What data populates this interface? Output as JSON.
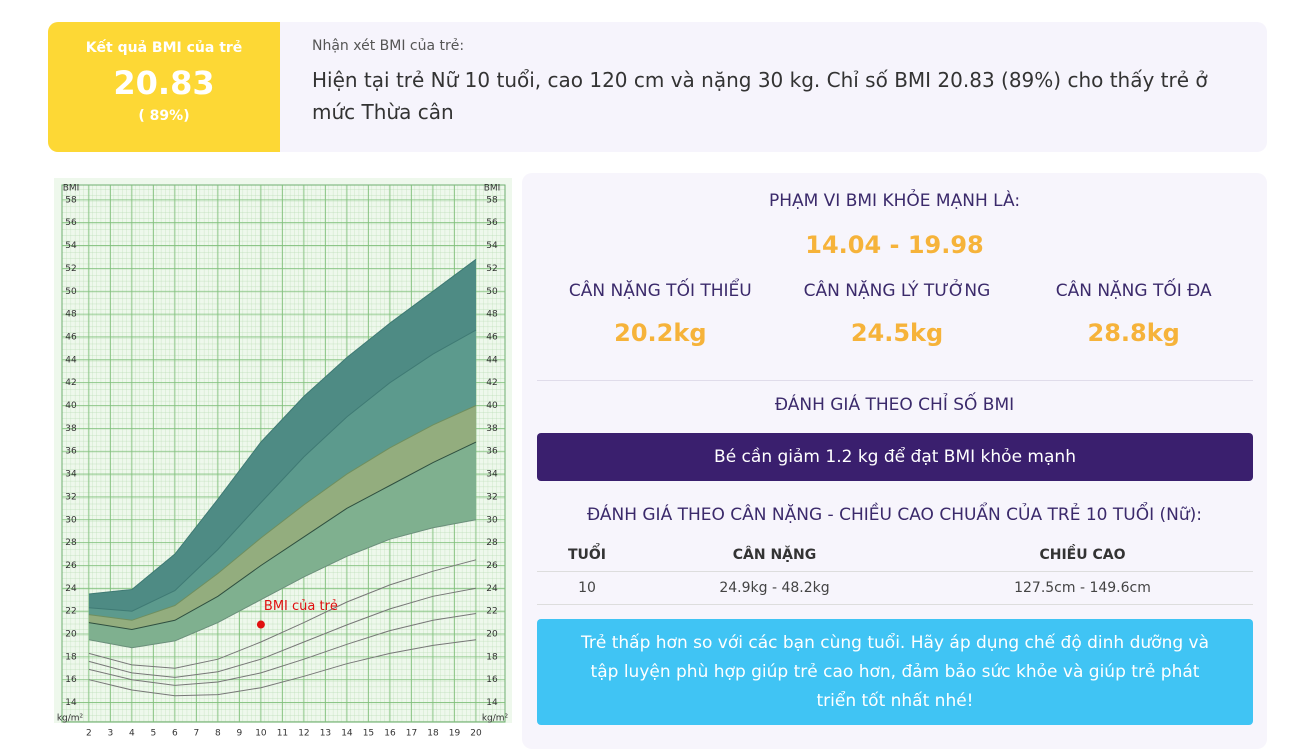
{
  "result": {
    "label": "Kết quả BMI của trẻ",
    "bmi": "20.83",
    "percent": "( 89%)"
  },
  "comment": {
    "label": "Nhận xét BMI của trẻ:",
    "text": "Hiện tại trẻ Nữ 10 tuổi, cao 120 cm và nặng 30 kg. Chỉ số BMI 20.83 (89%) cho thấy trẻ ở mức Thừa cân"
  },
  "healthy": {
    "title": "PHẠM VI BMI KHỎE MẠNH LÀ:",
    "range": "14.04 - 19.98",
    "items": [
      {
        "label": "CÂN NẶNG TỐI THIỂU",
        "value": "20.2kg"
      },
      {
        "label": "CÂN NẶNG LÝ TƯỞNG",
        "value": "24.5kg"
      },
      {
        "label": "CÂN NẶNG TỐI ĐA",
        "value": "28.8kg"
      }
    ]
  },
  "assessment": {
    "title": "ĐÁNH GIÁ THEO CHỈ SỐ BMI",
    "message": "Bé cần giảm 1.2 kg để đạt BMI khỏe mạnh"
  },
  "standard": {
    "title": "ĐÁNH GIÁ THEO CÂN NẶNG - CHIỀU CAO CHUẨN CỦA TRẺ 10 TUỔI (Nữ):",
    "table": {
      "headers": [
        "TUỔI",
        "CÂN NẶNG",
        "CHIỀU CAO"
      ],
      "rows": [
        [
          "10",
          "24.9kg - 48.2kg",
          "127.5cm - 149.6cm"
        ]
      ]
    },
    "advice": "Trẻ thấp hơn so với các bạn cùng tuổi. Hãy áp dụng chế độ dinh dưỡng và tập luyện phù hợp giúp trẻ cao hơn, đảm bảo sức khỏe và giúp trẻ phát triển tốt nhất nhé!"
  },
  "chart_data": {
    "type": "line",
    "y_label": "BMI",
    "unit_label": "kg/m²",
    "x": [
      2,
      4,
      6,
      8,
      10,
      12,
      14,
      16,
      18,
      20
    ],
    "xlim": [
      0.75,
      21.35
    ],
    "xticks": [
      2,
      3,
      4,
      5,
      6,
      7,
      8,
      9,
      10,
      11,
      12,
      13,
      14,
      15,
      16,
      17,
      18,
      19,
      20
    ],
    "ylim": [
      12.3,
      59.3
    ],
    "yticks": [
      14,
      16,
      18,
      20,
      22,
      24,
      26,
      28,
      30,
      32,
      34,
      36,
      38,
      40,
      42,
      44,
      46,
      48,
      50,
      52,
      54,
      56,
      58
    ],
    "grid": true,
    "series": [
      {
        "color": "#3f7a74",
        "fill": "#4e8b84",
        "values": [
          23.5,
          23.9,
          27,
          31.8,
          36.8,
          40.8,
          44.2,
          47.2,
          50,
          52.8
        ]
      },
      {
        "color": "#3f7a74",
        "fill": "#5c9a8d",
        "values": [
          22.3,
          22,
          23.8,
          27.4,
          31.5,
          35.5,
          39,
          42,
          44.5,
          46.6
        ]
      },
      {
        "color": "#6f8f5f",
        "fill": "#93ad7e",
        "values": [
          21.7,
          21.2,
          22.5,
          25.3,
          28.4,
          31.3,
          34,
          36.3,
          38.3,
          40
        ]
      },
      {
        "color": "#2f4f3f",
        "fill": "#7fb08f",
        "values": [
          21,
          20.4,
          21.2,
          23.3,
          26,
          28.5,
          31,
          33,
          35,
          36.8
        ]
      },
      {
        "color": "#6b8f7b",
        "values": [
          19.5,
          18.8,
          19.4,
          21,
          23,
          25,
          26.8,
          28.3,
          29.3,
          30
        ]
      },
      {
        "color": "#777777",
        "values": [
          18.3,
          17.3,
          17,
          17.8,
          19.3,
          21,
          22.8,
          24.3,
          25.5,
          26.5
        ]
      },
      {
        "color": "#777777",
        "values": [
          17.6,
          16.6,
          16.2,
          16.7,
          17.8,
          19.3,
          20.8,
          22.2,
          23.3,
          24
        ]
      },
      {
        "color": "#777777",
        "values": [
          16.9,
          16,
          15.5,
          15.8,
          16.6,
          17.8,
          19.1,
          20.3,
          21.2,
          21.8
        ]
      },
      {
        "color": "#777777",
        "values": [
          16,
          15.1,
          14.6,
          14.7,
          15.3,
          16.3,
          17.4,
          18.3,
          19,
          19.5
        ]
      }
    ],
    "point": {
      "x": 10,
      "y": 20.83,
      "label": "BMI của trẻ",
      "color": "#e01010"
    }
  }
}
